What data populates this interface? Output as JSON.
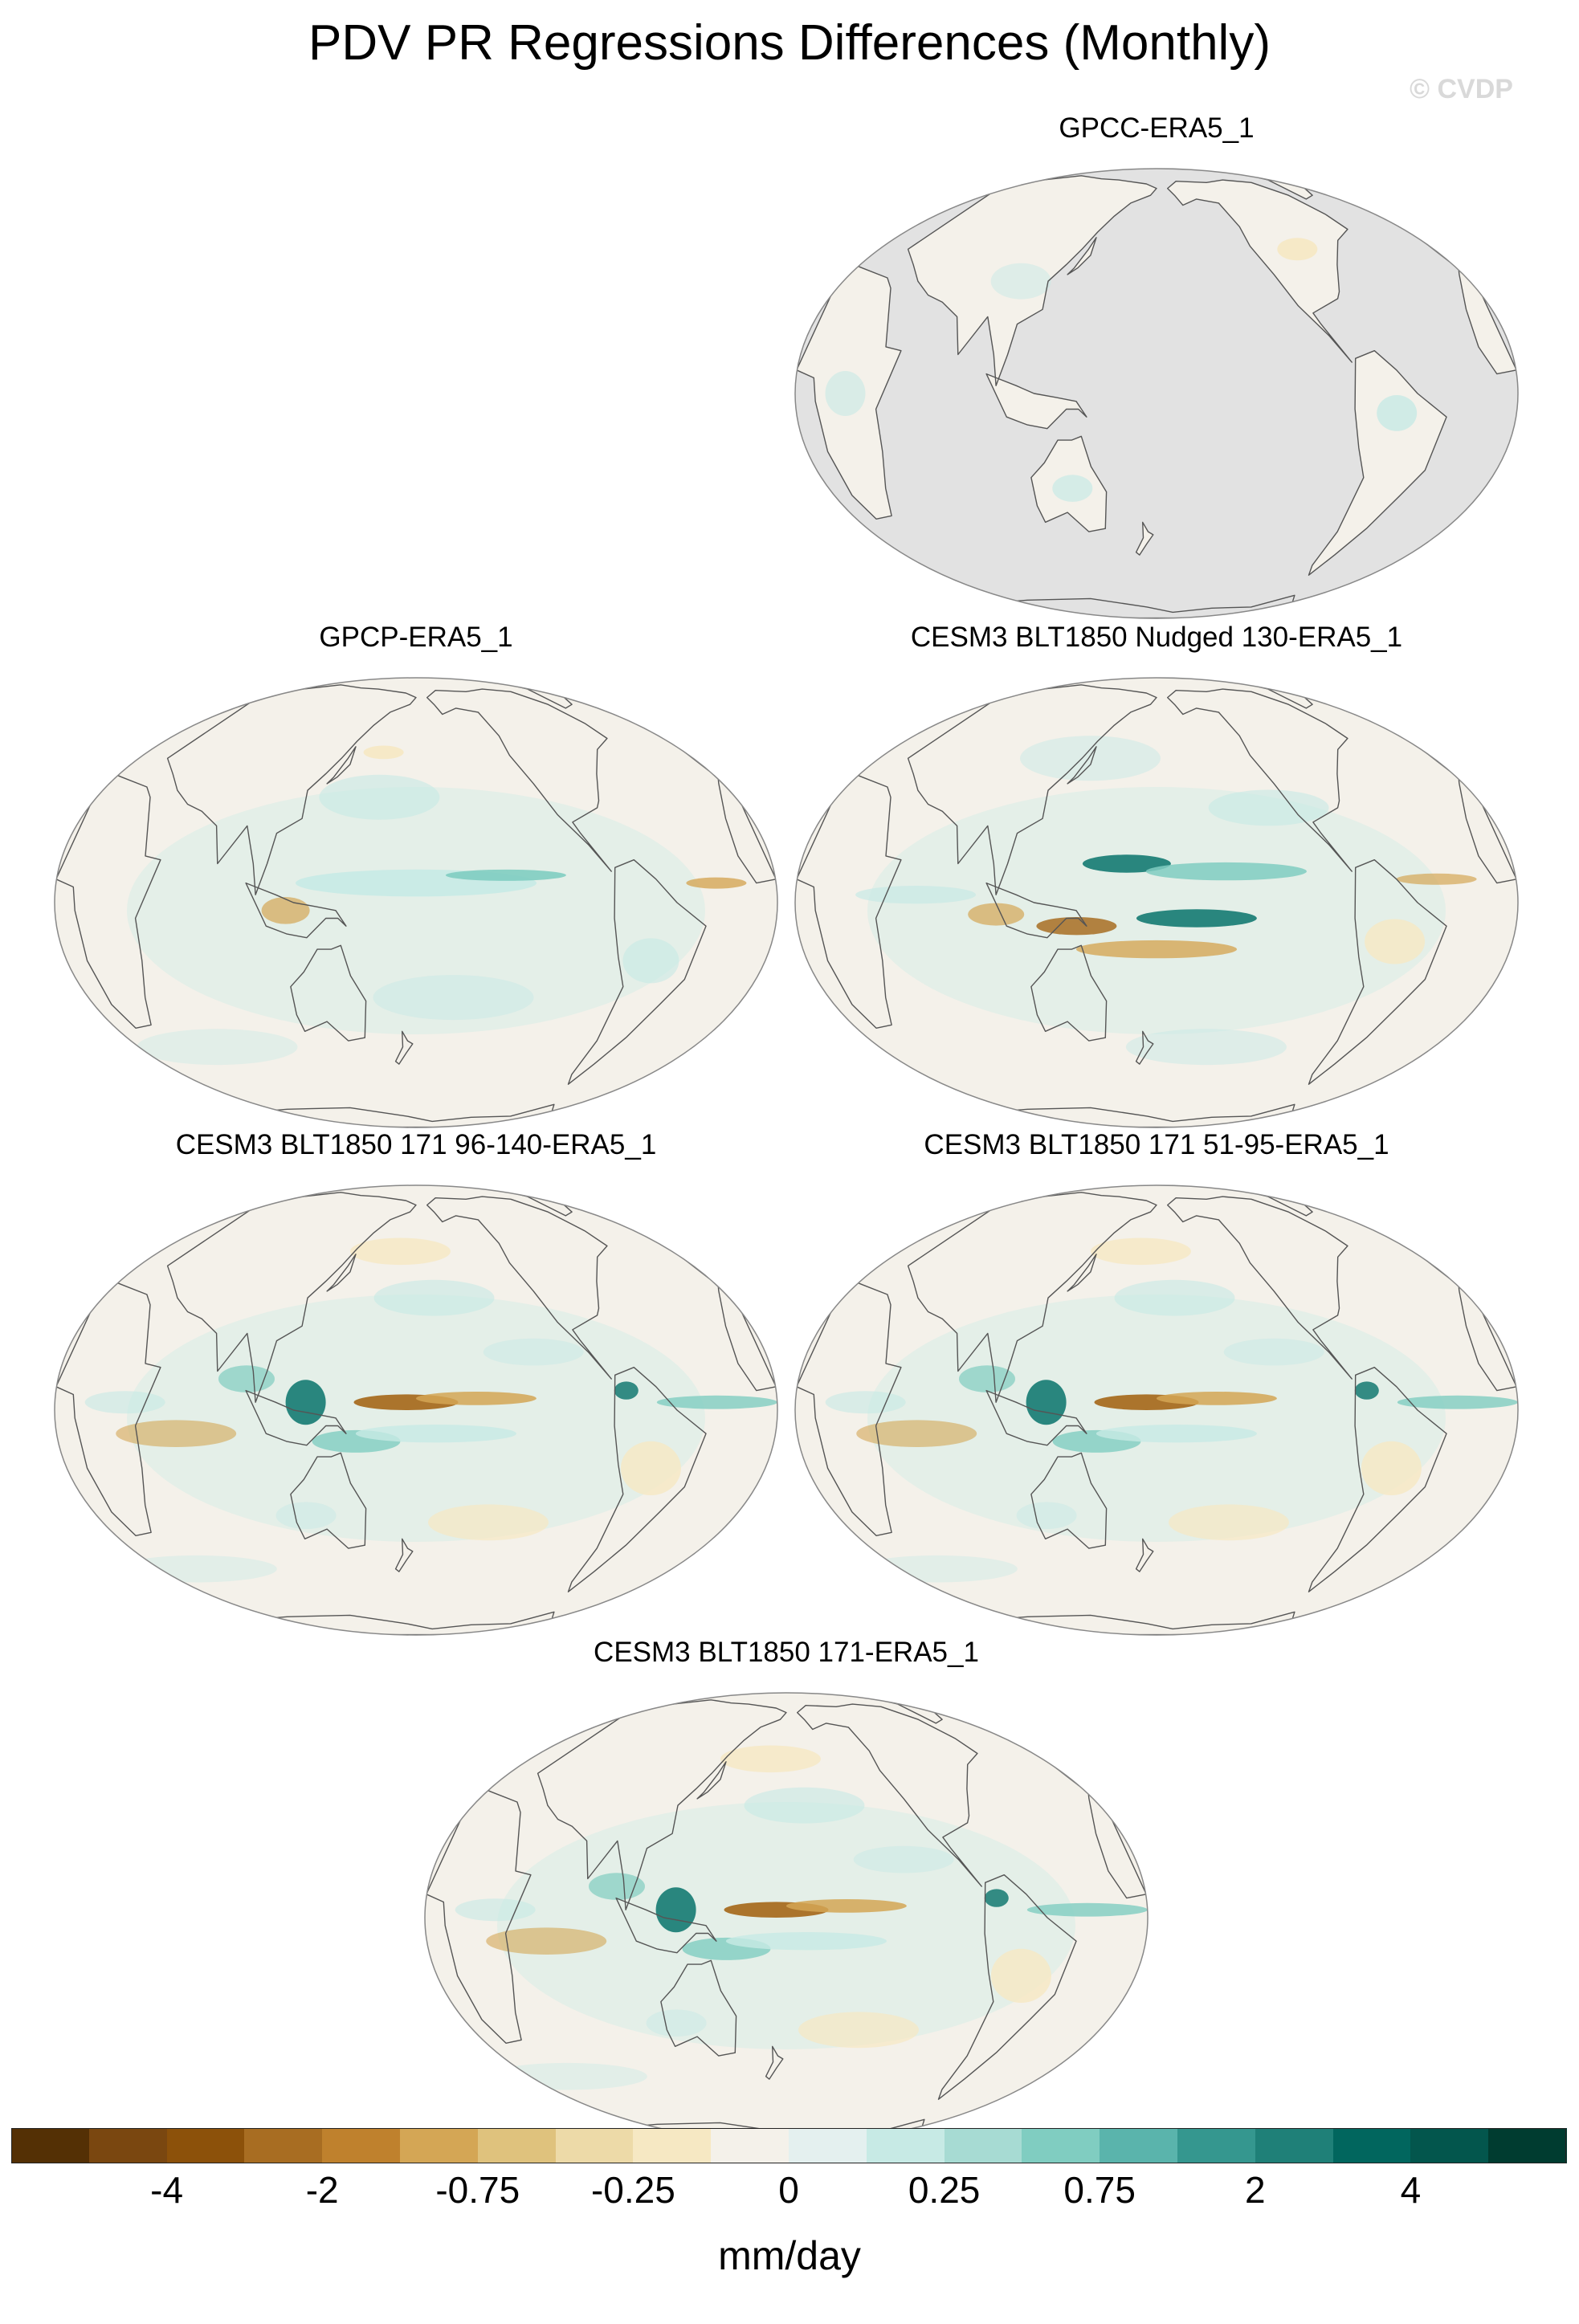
{
  "title": "PDV PR Regressions Differences (Monthly)",
  "watermark": "© CVDP",
  "panels": [
    {
      "label": "GPCC-ERA5_1",
      "style": "land-only"
    },
    {
      "label": "GPCP-ERA5_1",
      "style": "weak"
    },
    {
      "label": "CESM3 BLT1850 Nudged 130-ERA5_1",
      "style": "nudged"
    },
    {
      "label": "CESM3 BLT1850 171 96-140-ERA5_1",
      "style": "strong"
    },
    {
      "label": "CESM3 BLT1850 171 51-95-ERA5_1",
      "style": "strong"
    },
    {
      "label": "CESM3 BLT1850 171-ERA5_1",
      "style": "strong"
    }
  ],
  "colorbar": {
    "colors": [
      "#543005",
      "#7a4710",
      "#8c510a",
      "#a86d22",
      "#bf812d",
      "#d4a655",
      "#dfc27d",
      "#eddaa8",
      "#f6e8c3",
      "#f4f1ea",
      "#e4f0ef",
      "#c7eae5",
      "#a7dbd3",
      "#80cdc1",
      "#5ab4ac",
      "#35978f",
      "#1f8078",
      "#01665e",
      "#03564d",
      "#003c30"
    ],
    "tick_labels": [
      "-4",
      "-2",
      "-0.75",
      "-0.25",
      "0",
      "0.25",
      "0.75",
      "2",
      "4"
    ],
    "units": "mm/day"
  },
  "palette": {
    "ocean_background": "#f4f1ea",
    "masked_ocean": "#e2e2e2",
    "coastline": "#555555",
    "wet_strong": "#1f8078",
    "wet_mid": "#80cdc1",
    "wet_light": "#c7eae5",
    "dry_strong": "#a86d22",
    "dry_mid": "#d4a655",
    "dry_light": "#f6e8c3"
  }
}
